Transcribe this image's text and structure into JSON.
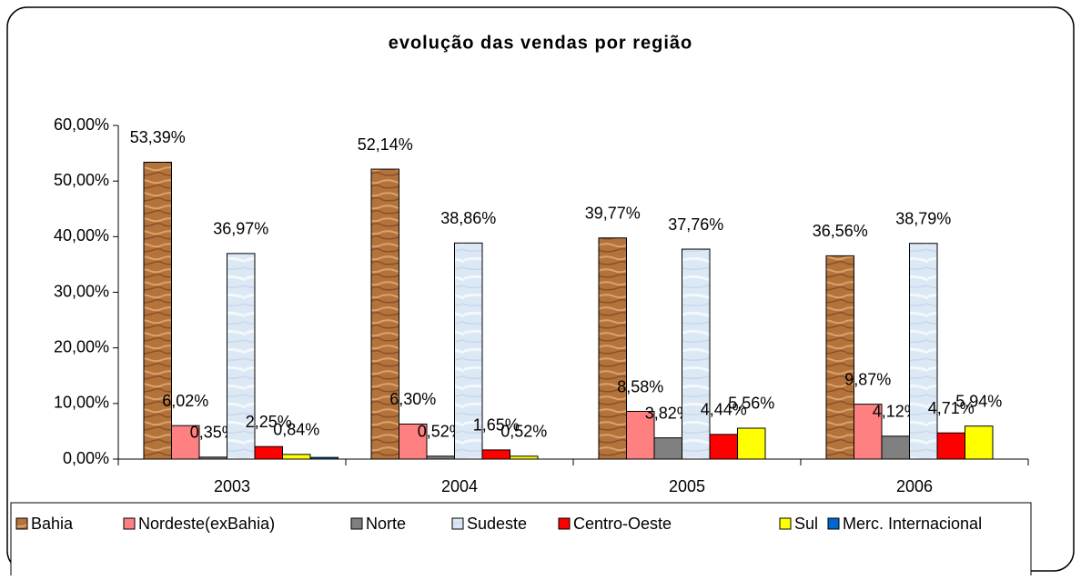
{
  "chart_data": {
    "type": "bar",
    "title": "evolução das vendas por região",
    "categories": [
      "2003",
      "2004",
      "2005",
      "2006"
    ],
    "ylim": [
      0,
      60
    ],
    "yticks": [
      {
        "value": 0,
        "label": "0,00%"
      },
      {
        "value": 10,
        "label": "10,00%"
      },
      {
        "value": 20,
        "label": "20,00%"
      },
      {
        "value": 30,
        "label": "30,00%"
      },
      {
        "value": 40,
        "label": "40,00%"
      },
      {
        "value": 50,
        "label": "50,00%"
      },
      {
        "value": 60,
        "label": "60,00%"
      }
    ],
    "legend": "bottom",
    "series": [
      {
        "name": "Bahia",
        "color": "#b5733c",
        "values": [
          53.39,
          52.14,
          39.77,
          36.56
        ],
        "value_labels": [
          "53,39%",
          "52,14%",
          "39,77%",
          "36,56%"
        ]
      },
      {
        "name": "Nordeste(exBahia)",
        "color": "#ff8080",
        "values": [
          6.02,
          6.3,
          8.58,
          9.87
        ],
        "value_labels": [
          "6,02%",
          "6,30%",
          "8,58%",
          "9,87%"
        ]
      },
      {
        "name": "Norte",
        "color": "#808080",
        "values": [
          0.35,
          0.52,
          3.82,
          4.12
        ],
        "value_labels": [
          "0,35%",
          "0,52%",
          "3,82%",
          "4,12%"
        ]
      },
      {
        "name": "Sudeste",
        "color": "#dde8f5",
        "values": [
          36.97,
          38.86,
          37.76,
          38.79
        ],
        "value_labels": [
          "36,97%",
          "38,86%",
          "37,76%",
          "38,79%"
        ]
      },
      {
        "name": "Centro-Oeste",
        "color": "#ff0000",
        "values": [
          2.25,
          1.65,
          4.44,
          4.71
        ],
        "value_labels": [
          "2,25%",
          "1,65%",
          "4,44%",
          "4,71%"
        ]
      },
      {
        "name": "Sul",
        "color": "#ffff00",
        "values": [
          0.84,
          0.52,
          5.56,
          5.94
        ],
        "value_labels": [
          "0,84%",
          "0,52%",
          "5,56%",
          "5,94%"
        ]
      },
      {
        "name": "Merc. Internacional",
        "color": "#0066cc",
        "values": [
          0.3,
          null,
          null,
          null
        ]
      }
    ]
  }
}
